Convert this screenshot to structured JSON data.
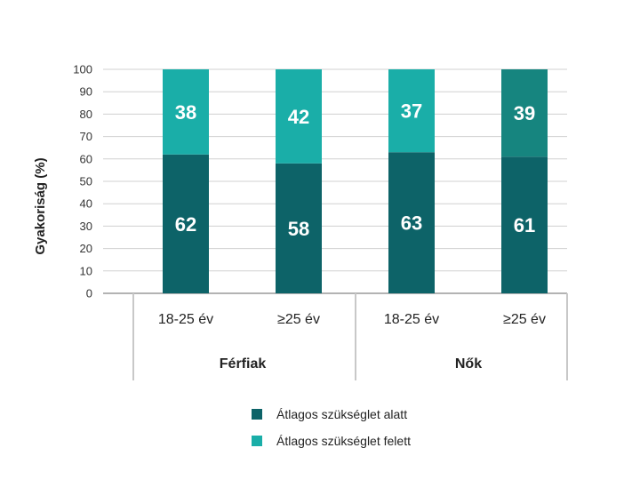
{
  "chart_data": {
    "type": "bar",
    "stacked": true,
    "ylabel": "Gyakoriság (%)",
    "ylim": [
      0,
      100
    ],
    "yticks": [
      0,
      10,
      20,
      30,
      40,
      50,
      60,
      70,
      80,
      90,
      100
    ],
    "grid": true,
    "categories": [
      "18-25 év",
      "≥25 év",
      "18-25 év",
      "≥25 év"
    ],
    "groups": [
      {
        "label": "Férfiak",
        "categories": [
          0,
          1
        ]
      },
      {
        "label": "Nők",
        "categories": [
          2,
          3
        ]
      }
    ],
    "series": [
      {
        "name": "Átlagos szükséglet alatt",
        "values": [
          62,
          58,
          63,
          61
        ],
        "color": "#0d6368"
      },
      {
        "name": "Átlagos szükséglet felett",
        "values": [
          38,
          42,
          37,
          39
        ],
        "colors": [
          "#1aaea8",
          "#1aaea8",
          "#1aaea8",
          "#16857f"
        ]
      }
    ],
    "legend_position": "bottom"
  }
}
